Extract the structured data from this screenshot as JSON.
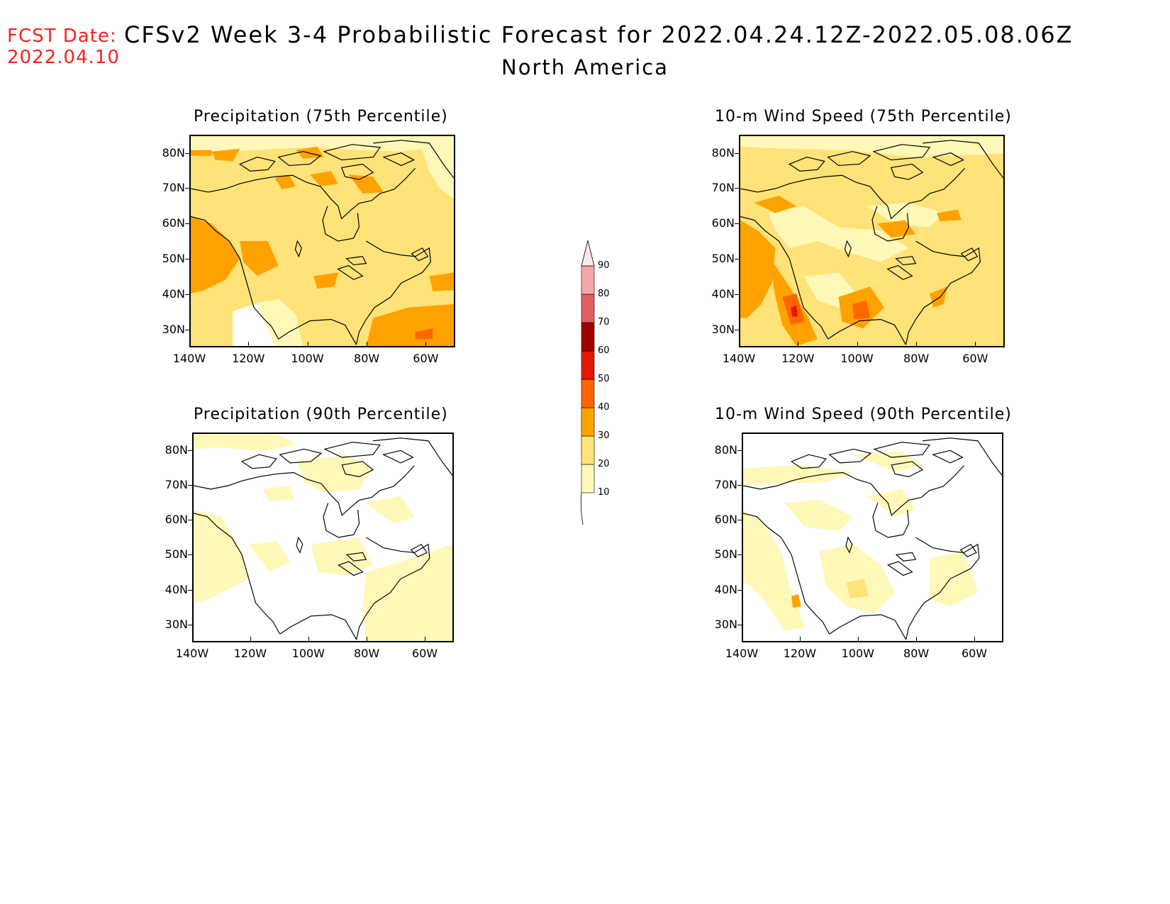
{
  "header": {
    "fcst_label": "FCST Date:",
    "fcst_date": "2022.04.10",
    "title": "CFSv2 Week 3-4 Probabilistic Forecast for 2022.04.24.12Z-2022.05.08.06Z",
    "region": "North America"
  },
  "axes": {
    "lat_ticks": [
      "80N",
      "70N",
      "60N",
      "50N",
      "40N",
      "30N"
    ],
    "lon_ticks": [
      "140W",
      "120W",
      "100W",
      "80W",
      "60W"
    ]
  },
  "panels": [
    {
      "id": "precip75",
      "title": "Precipitation (75th Percentile)"
    },
    {
      "id": "wind75",
      "title": "10-m Wind Speed (75th Percentile)"
    },
    {
      "id": "precip90",
      "title": "Precipitation (90th Percentile)"
    },
    {
      "id": "wind90",
      "title": "10-m Wind Speed (90th Percentile)"
    }
  ],
  "colorbar": {
    "levels": [
      "10",
      "20",
      "30",
      "40",
      "50",
      "60",
      "70",
      "80",
      "90"
    ],
    "colors": [
      "#fff8b8",
      "#ffe278",
      "#ffa200",
      "#ff6600",
      "#e31a00",
      "#a00000",
      "#e06060",
      "#f4a6a6",
      "#fde6e6"
    ]
  }
}
